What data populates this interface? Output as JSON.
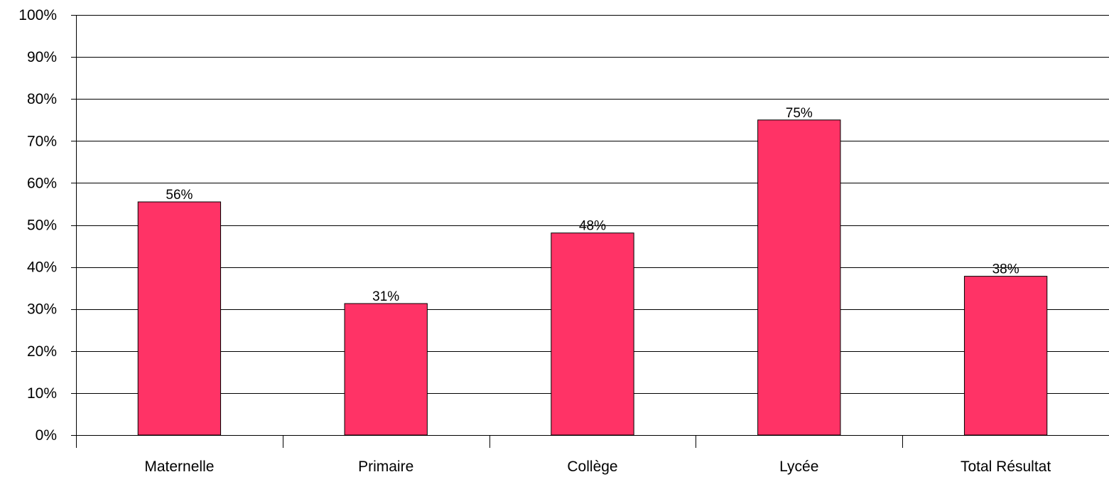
{
  "chart_data": {
    "type": "bar",
    "title": "",
    "xlabel": "",
    "ylabel": "",
    "categories": [
      "Maternelle",
      "Primaire",
      "Collège",
      "Lycée",
      "Total Résultat"
    ],
    "values": [
      0.555,
      0.313,
      0.481,
      0.75,
      0.378
    ],
    "data_labels": [
      "56%",
      "31%",
      "48%",
      "75%",
      "38%"
    ],
    "ylim": [
      0,
      1
    ],
    "yticks": [
      0,
      0.1,
      0.2,
      0.3,
      0.4,
      0.5,
      0.6,
      0.7,
      0.8,
      0.9,
      1.0
    ],
    "ytick_labels": [
      "0%",
      "10%",
      "20%",
      "30%",
      "40%",
      "50%",
      "60%",
      "70%",
      "80%",
      "90%",
      "100%"
    ],
    "grid": true,
    "legend": "none",
    "colors": {
      "bar": "#ff3366",
      "bar_edge": "#000000",
      "grid": "#000000",
      "axis": "#000000"
    }
  }
}
